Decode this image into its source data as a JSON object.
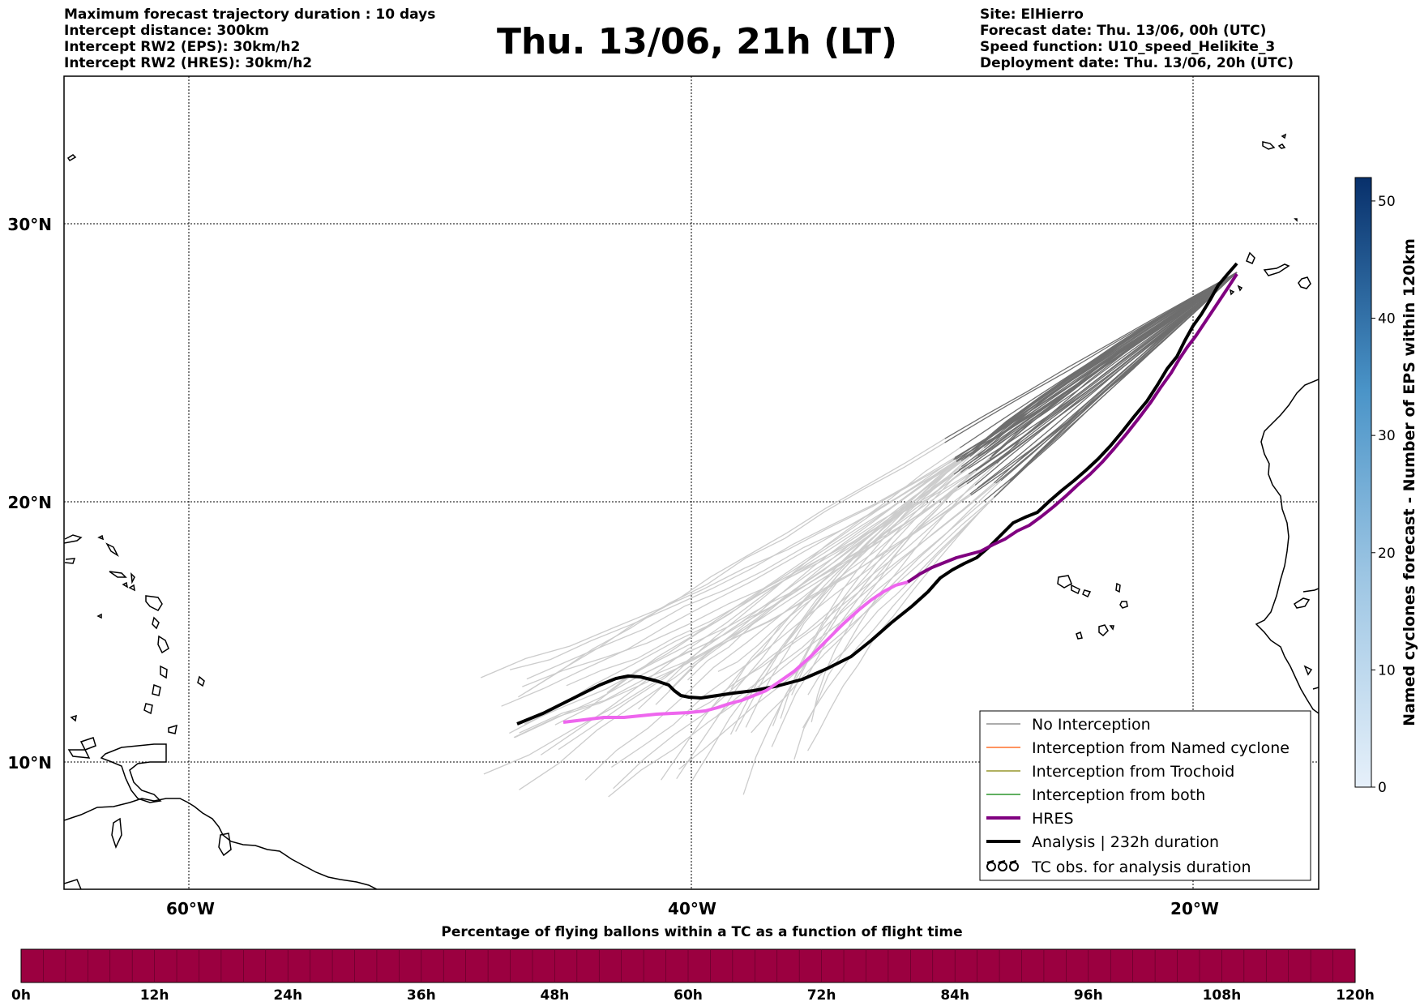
{
  "header": {
    "title": "Thu. 13/06, 21h (LT)",
    "left_lines": [
      "Maximum forecast trajectory duration : 10 days",
      "Intercept distance: 300km",
      "Intercept RW2 (EPS):  30km/h2",
      "Intercept RW2 (HRES): 30km/h2"
    ],
    "right_lines": [
      "Site: ElHierro",
      "Forecast date: Thu. 13/06, 00h (UTC)",
      "Speed function: U10_speed_Helikite_3",
      "Deployment date: Thu. 13/06, 20h (UTC)"
    ]
  },
  "map": {
    "lon_labels": [
      "60°W",
      "40°W",
      "20°W"
    ],
    "lat_labels": [
      "30°N",
      "20°N",
      "10°N"
    ],
    "colors": {
      "no_interception": "#7a7a7a",
      "named_cyclone": "#ff5500",
      "trochoid": "#808000",
      "both": "#008000",
      "hres": "#800080",
      "hres_early": "#ee66ee",
      "analysis": "#000000",
      "ensemble_light": "#cccccc",
      "ensemble_dark": "#6e6e6e"
    }
  },
  "legend": {
    "items": [
      {
        "label": "No Interception",
        "style": "thin-gray"
      },
      {
        "label": "Interception from Named cyclone",
        "style": "thin-orange"
      },
      {
        "label": "Interception from Trochoid",
        "style": "thin-olive"
      },
      {
        "label": "Interception from both",
        "style": "thin-green"
      },
      {
        "label": "HRES",
        "style": "thick-purple"
      },
      {
        "label": "Analysis | 232h duration",
        "style": "thick-black"
      },
      {
        "label": "TC obs. for analysis duration",
        "style": "tc-symbols"
      }
    ]
  },
  "colorbar_right": {
    "label": "Named cyclones forecast - Number of EPS within 120km",
    "ticks": [
      "0",
      "10",
      "20",
      "30",
      "40",
      "50"
    ],
    "min": 0,
    "max": 52,
    "color_low": "#e3eef8",
    "color_high": "#0b3a78"
  },
  "colorbar_bottom": {
    "title": "Percentage of flying ballons within a TC as a function of flight time",
    "ticks": [
      "0h",
      "12h",
      "24h",
      "36h",
      "48h",
      "60h",
      "72h",
      "84h",
      "96h",
      "108h",
      "120h"
    ],
    "fill_color": "#9b0040"
  }
}
